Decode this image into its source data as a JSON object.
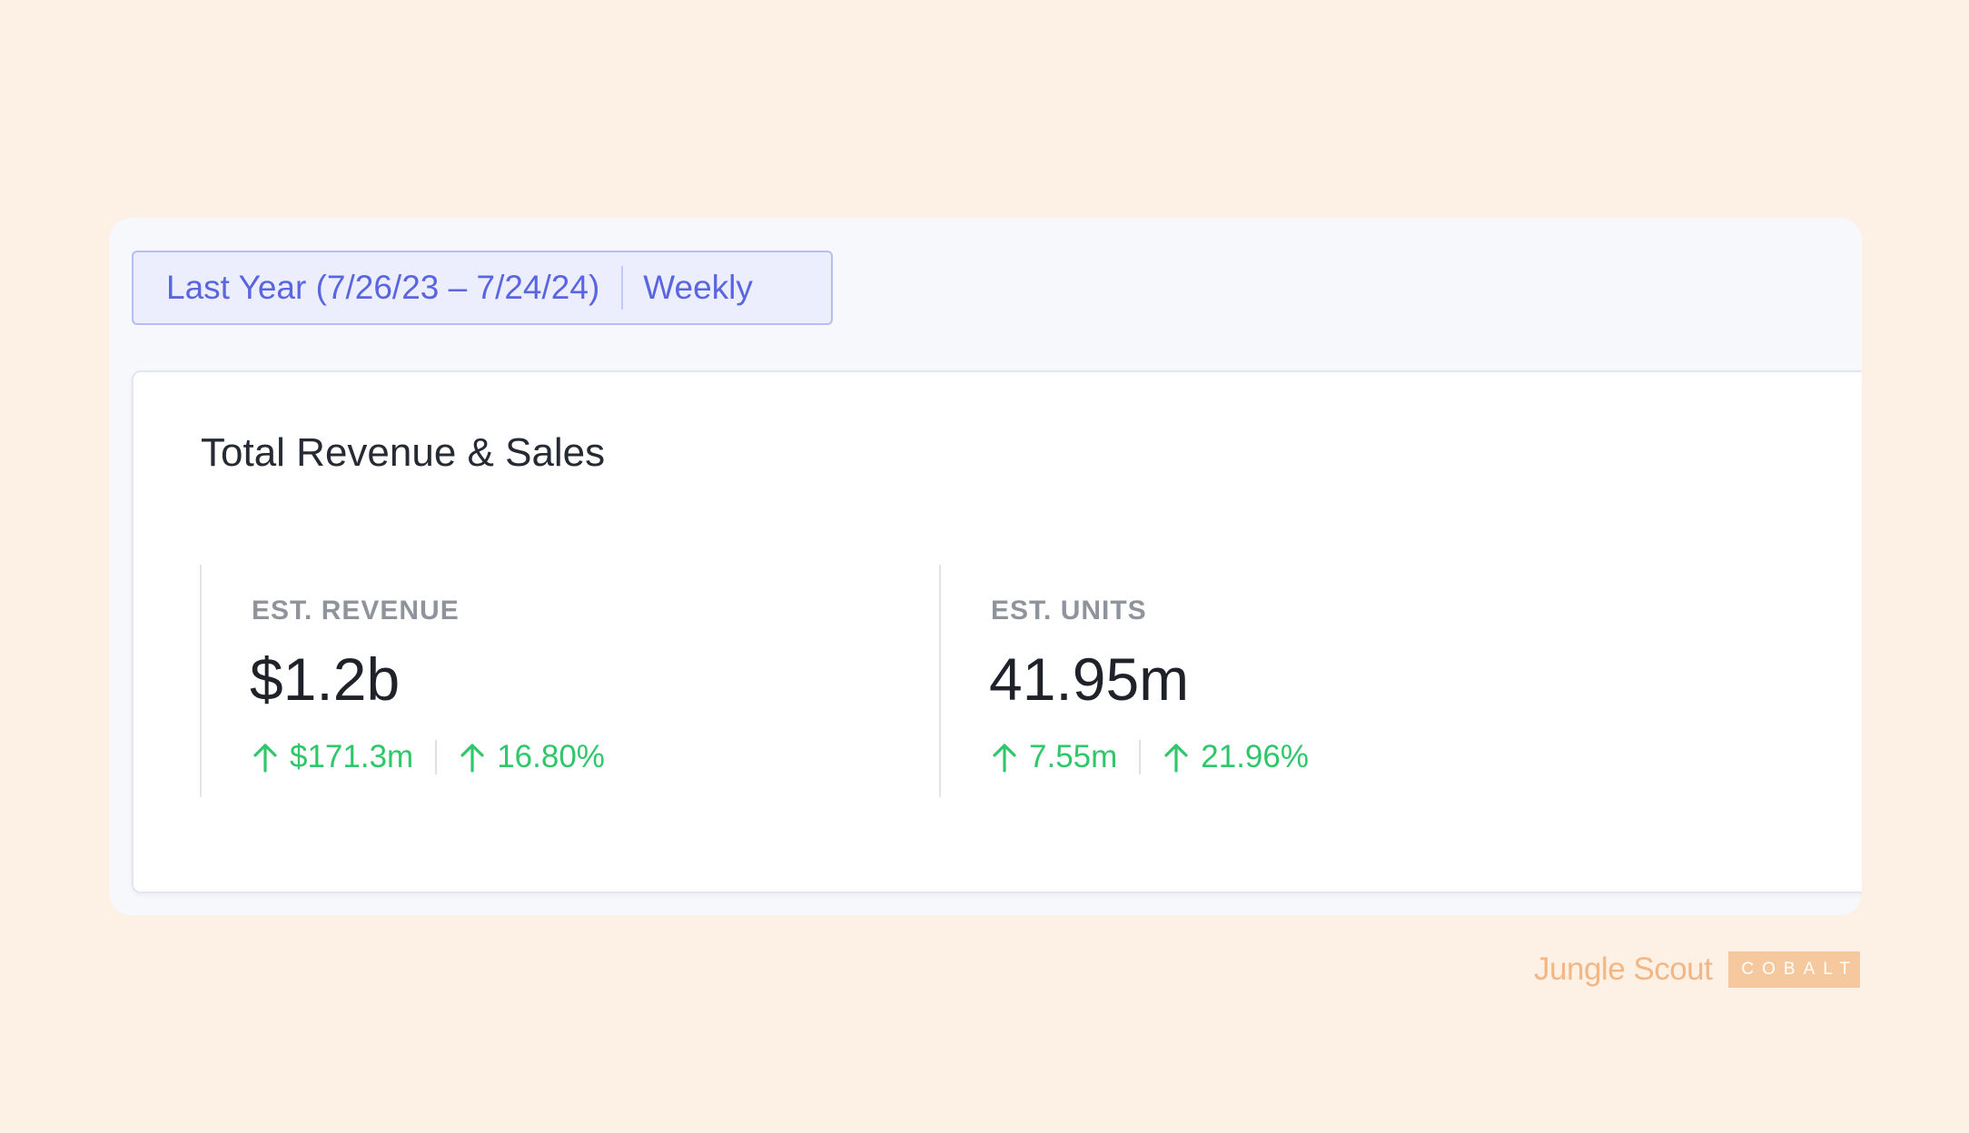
{
  "filter": {
    "date_range": "Last Year (7/26/23 – 7/24/24)",
    "interval": "Weekly"
  },
  "card": {
    "title": "Total Revenue & Sales"
  },
  "metrics": [
    {
      "label": "EST. REVENUE",
      "value": "$1.2b",
      "change_absolute": "$171.3m",
      "change_percent": "16.80%",
      "direction_icon": "arrow-up-icon"
    },
    {
      "label": "EST. UNITS",
      "value": "41.95m",
      "change_absolute": "7.55m",
      "change_percent": "21.96%",
      "direction_icon": "arrow-up-icon"
    }
  ],
  "brand": {
    "name": "Jungle Scout",
    "tag": "COBALT"
  },
  "colors": {
    "background": "#fdf1e5",
    "accent": "#5a66e0",
    "positive": "#2fc76a",
    "brand": "#f2b784"
  }
}
